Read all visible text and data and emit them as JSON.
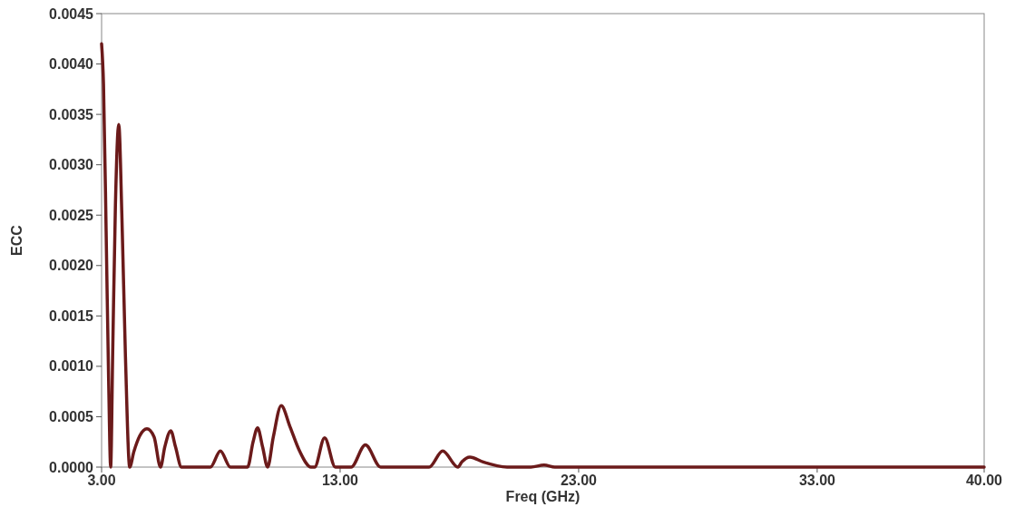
{
  "chart_data": {
    "type": "line",
    "xlabel": "Freq (GHz)",
    "ylabel": "ECC",
    "xlim": [
      3,
      40
    ],
    "xticks": [
      {
        "value": 3,
        "label": "3.00"
      },
      {
        "value": 13,
        "label": "13.00"
      },
      {
        "value": 23,
        "label": "23.00"
      },
      {
        "value": 33,
        "label": "33.00"
      },
      {
        "value": 40,
        "label": "40.00"
      }
    ],
    "ylim": [
      0,
      0.0045
    ],
    "yticks": [
      {
        "value": 0,
        "label": "0.0000"
      },
      {
        "value": 0.0005,
        "label": "0.0005"
      },
      {
        "value": 0.001,
        "label": "0.0010"
      },
      {
        "value": 0.0015,
        "label": "0.0015"
      },
      {
        "value": 0.002,
        "label": "0.0020"
      },
      {
        "value": 0.0025,
        "label": "0.0025"
      },
      {
        "value": 0.003,
        "label": "0.0030"
      },
      {
        "value": 0.0035,
        "label": "0.0035"
      },
      {
        "value": 0.004,
        "label": "0.0040"
      },
      {
        "value": 0.0045,
        "label": "0.0045"
      }
    ],
    "grid": false,
    "marker": "none",
    "line_style": "solid",
    "series": [
      {
        "color": "#6b1a1a",
        "x": [
          3.0,
          3.08,
          3.2,
          3.3,
          3.38,
          3.47,
          3.58,
          3.72,
          3.85,
          4.0,
          4.18,
          4.35,
          4.6,
          4.9,
          5.2,
          5.47,
          5.65,
          5.9,
          6.1,
          6.35,
          7.56,
          7.98,
          8.4,
          9.12,
          9.35,
          9.54,
          9.75,
          9.96,
          10.2,
          10.53,
          10.9,
          11.3,
          11.78,
          11.93,
          12.35,
          12.8,
          13.46,
          14.06,
          14.7,
          16.73,
          17.3,
          17.94,
          18.1,
          18.44,
          19.0,
          20.0,
          21.0,
          21.55,
          22.0,
          40
        ],
        "values": [
          0.0042,
          0.0038,
          0.0022,
          0.0008,
          0,
          0.0012,
          0.0026,
          0.0034,
          0.0025,
          0.0011,
          0,
          0.00015,
          0.00031,
          0.00038,
          0.0003,
          0,
          0.0002,
          0.00036,
          0.0002,
          0,
          0,
          0.00016,
          0,
          0,
          0.00025,
          0.00039,
          0.0002,
          0,
          0.0003,
          0.00061,
          0.0004,
          0.00016,
          0,
          0,
          0.00029,
          0,
          0,
          0.00022,
          0,
          0,
          0.00016,
          0,
          5e-05,
          0.0001,
          5e-05,
          0,
          0,
          2e-05,
          0,
          0
        ]
      }
    ]
  }
}
